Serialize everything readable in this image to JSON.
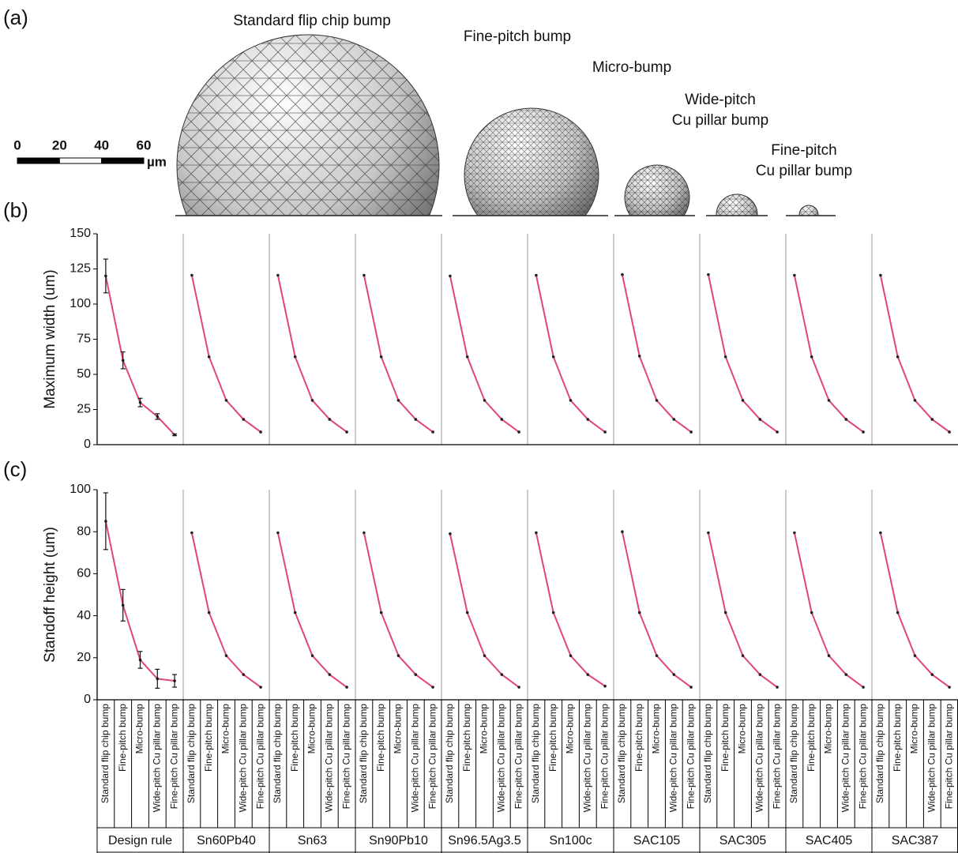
{
  "panel_labels": [
    "(a)",
    "(b)",
    "(c)"
  ],
  "illustration": {
    "bump_labels": [
      [
        "Standard flip chip bump"
      ],
      [
        "Fine-pitch bump"
      ],
      [
        "Micro-bump"
      ],
      [
        "Wide-pitch",
        "Cu pillar bump"
      ],
      [
        "Fine-pitch",
        "Cu pillar bump"
      ]
    ],
    "scale_bar": {
      "ticks": [
        0,
        20,
        40,
        60
      ],
      "unit": "µm"
    }
  },
  "chart_data": [
    {
      "type": "line",
      "y_label": "Maximum width (um)",
      "ylim": [
        0,
        150
      ],
      "yticks": [
        0,
        25,
        50,
        75,
        100,
        125,
        150
      ],
      "categories": [
        "Standard flip chip bump",
        "Fine-pitch bump",
        "Micro-bump",
        "Wide-pitch Cu pillar bump",
        "Fine-pitch Cu pillar bump"
      ],
      "series": [
        {
          "name": "Design rule",
          "color": "#e0457b",
          "values": [
            120,
            60,
            30,
            20,
            7
          ],
          "errors": [
            12,
            6,
            3,
            2,
            0.6
          ]
        },
        {
          "name": "Sn60Pb40",
          "color": "#e0457b",
          "values": [
            120.5,
            62.5,
            31.5,
            18,
            9
          ]
        },
        {
          "name": "Sn63",
          "color": "#e0457b",
          "values": [
            120.5,
            62.5,
            31.5,
            18,
            9
          ]
        },
        {
          "name": "Sn90Pb10",
          "color": "#e0457b",
          "values": [
            120.5,
            62.5,
            31.5,
            18,
            9
          ]
        },
        {
          "name": "Sn96.5Ag3.5",
          "color": "#e0457b",
          "values": [
            120,
            62.5,
            31.5,
            18,
            9
          ]
        },
        {
          "name": "Sn100c",
          "color": "#e0457b",
          "values": [
            120.5,
            62.5,
            31.5,
            18,
            9
          ]
        },
        {
          "name": "SAC105",
          "color": "#e0457b",
          "values": [
            121,
            63,
            31.5,
            18,
            9
          ]
        },
        {
          "name": "SAC305",
          "color": "#e0457b",
          "values": [
            121,
            62.5,
            31.5,
            18,
            9
          ]
        },
        {
          "name": "SAC405",
          "color": "#e0457b",
          "values": [
            120.5,
            62.5,
            31.5,
            18,
            9
          ]
        },
        {
          "name": "SAC387",
          "color": "#e0457b",
          "values": [
            120.5,
            62.5,
            31.5,
            18,
            9
          ]
        }
      ]
    },
    {
      "type": "line",
      "y_label": "Standoff height (um)",
      "ylim": [
        0,
        100
      ],
      "yticks": [
        0,
        20,
        40,
        60,
        80,
        100
      ],
      "categories": [
        "Standard flip chip bump",
        "Fine-pitch bump",
        "Micro-bump",
        "Wide-pitch Cu pillar bump",
        "Fine-pitch Cu pillar bump"
      ],
      "series": [
        {
          "name": "Design rule",
          "color": "#e0457b",
          "values": [
            85,
            45,
            19,
            10,
            9
          ],
          "errors": [
            13.5,
            7.5,
            4,
            4.5,
            3
          ]
        },
        {
          "name": "Sn60Pb40",
          "color": "#e0457b",
          "values": [
            79.5,
            41.5,
            21,
            12,
            6
          ]
        },
        {
          "name": "Sn63",
          "color": "#e0457b",
          "values": [
            79.5,
            41.5,
            21,
            12,
            6
          ]
        },
        {
          "name": "Sn90Pb10",
          "color": "#e0457b",
          "values": [
            79.5,
            41.5,
            21,
            12,
            6
          ]
        },
        {
          "name": "Sn96.5Ag3.5",
          "color": "#e0457b",
          "values": [
            79,
            41.5,
            21,
            12,
            6
          ]
        },
        {
          "name": "Sn100c",
          "color": "#e0457b",
          "values": [
            79.5,
            41.5,
            21,
            12,
            6.5
          ]
        },
        {
          "name": "SAC105",
          "color": "#e0457b",
          "values": [
            80,
            41.5,
            21,
            12,
            6
          ]
        },
        {
          "name": "SAC305",
          "color": "#e0457b",
          "values": [
            79.5,
            41.5,
            21,
            12,
            6
          ]
        },
        {
          "name": "SAC405",
          "color": "#e0457b",
          "values": [
            79.5,
            41.5,
            21,
            12,
            6
          ]
        },
        {
          "name": "SAC387",
          "color": "#e0457b",
          "values": [
            79.5,
            41.5,
            21,
            12,
            6
          ]
        }
      ]
    }
  ]
}
